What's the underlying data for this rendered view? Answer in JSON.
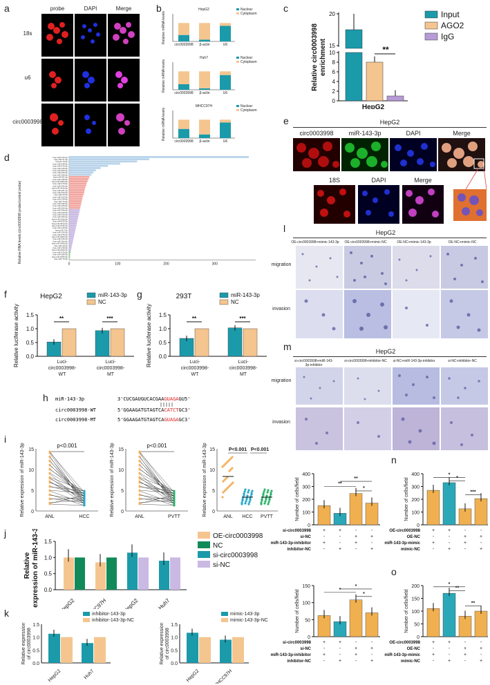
{
  "panels": {
    "a": "a",
    "b": "b",
    "c": "c",
    "d": "d",
    "e": "e",
    "f": "f",
    "g": "g",
    "h": "h",
    "i": "i",
    "j": "j",
    "k": "k",
    "l": "l",
    "m": "m",
    "n": "n",
    "o": "o"
  },
  "colors": {
    "teal": "#1b9aaa",
    "orange": "#f5c58f",
    "purple": "#b79ad8",
    "green": "#118a5a",
    "lightblue": "#b8d3ea",
    "salmon": "#f2a6a0",
    "lavender": "#c9b9e3",
    "pvtt": "#2bb36c",
    "hcc": "#27a8c9",
    "anl": "#f3b15a"
  },
  "a": {
    "cols": [
      "probe",
      "DAPI",
      "Merge"
    ],
    "rows": [
      "18s",
      "u6",
      "circ0003998"
    ]
  },
  "b": {
    "ylabel": "Relative mRNA levels",
    "legend": [
      "Nuclear",
      "Cytoplasm"
    ],
    "charts": [
      {
        "title": "HepG2",
        "categories": [
          "circ0003998",
          "β-actin",
          "U6"
        ]
      },
      {
        "title": "Huh7",
        "categories": [
          "circ0003998",
          "β-actin",
          "U6"
        ]
      },
      {
        "title": "MHCC97H",
        "categories": [
          "circ0003998",
          "β-actin",
          "U6"
        ]
      }
    ]
  },
  "chart_data": [
    {
      "id": "b-HepG2",
      "type": "bar",
      "stacked": true,
      "categories": [
        "circ0003998",
        "β-actin",
        "U6"
      ],
      "series": [
        {
          "name": "Nuclear",
          "values": [
            0.35,
            0.1,
            0.85
          ]
        },
        {
          "name": "Cytoplasm",
          "values": [
            0.65,
            0.9,
            0.15
          ]
        }
      ],
      "ylim": [
        0,
        1.5
      ]
    },
    {
      "id": "b-Huh7",
      "type": "bar",
      "stacked": true,
      "categories": [
        "circ0003998",
        "β-actin",
        "U6"
      ],
      "series": [
        {
          "name": "Nuclear",
          "values": [
            0.3,
            0.08,
            0.8
          ]
        },
        {
          "name": "Cytoplasm",
          "values": [
            0.7,
            0.92,
            0.2
          ]
        }
      ],
      "ylim": [
        0,
        1.5
      ]
    },
    {
      "id": "b-MHCC97H",
      "type": "bar",
      "stacked": true,
      "categories": [
        "circ0003998",
        "β-actin",
        "U6"
      ],
      "series": [
        {
          "name": "Nuclear",
          "values": [
            0.5,
            0.2,
            0.85
          ]
        },
        {
          "name": "Cytoplasm",
          "values": [
            0.5,
            0.8,
            0.15
          ]
        }
      ],
      "ylim": [
        0,
        1.5
      ]
    },
    {
      "id": "c",
      "type": "bar",
      "categories": [
        "HepG2"
      ],
      "series": [
        {
          "name": "Input",
          "values": [
            17.5
          ]
        },
        {
          "name": "AGO2",
          "values": [
            8
          ]
        },
        {
          "name": "IgG",
          "values": [
            1
          ]
        }
      ],
      "ylabel": "Relative circ0003998 enrichment",
      "yticks": [
        "0",
        "2",
        "4",
        "6",
        "8",
        "10",
        "15",
        "20"
      ],
      "sig": "**"
    },
    {
      "id": "f",
      "type": "bar",
      "title": "HepG2",
      "categories": [
        "Luci-circ0003998-WT",
        "Luci-circ0003998-MT"
      ],
      "series": [
        {
          "name": "miR-143-3p",
          "values": [
            0.52,
            0.93
          ]
        },
        {
          "name": "NC",
          "values": [
            1.0,
            1.0
          ]
        }
      ],
      "ylabel": "Relative luciferase activity",
      "yticks": [
        "0.0",
        "0.5",
        "1.0",
        "1.5"
      ],
      "sig": [
        "**",
        "***"
      ]
    },
    {
      "id": "g",
      "type": "bar",
      "title": "293T",
      "categories": [
        "Luci-circ0003998-WT",
        "Luci-circ0003998-MT"
      ],
      "series": [
        {
          "name": "miR-143-3p",
          "values": [
            0.65,
            1.03
          ]
        },
        {
          "name": "NC",
          "values": [
            1.0,
            1.0
          ]
        }
      ],
      "ylabel": "Relative luciferase activity",
      "yticks": [
        "0.0",
        "0.5",
        "1.0",
        "1.5"
      ],
      "sig": [
        "**",
        "***"
      ]
    },
    {
      "id": "j",
      "type": "bar",
      "categories": [
        "HepG2",
        "MHCC97H",
        "HepG2",
        "Huh7"
      ],
      "series": [
        {
          "name": "OE-circ0003998",
          "values": [
            1.0,
            0.85,
            null,
            null
          ]
        },
        {
          "name": "NC",
          "values": [
            1.0,
            1.0,
            null,
            null
          ]
        },
        {
          "name": "si-circ0003998",
          "values": [
            null,
            null,
            1.15,
            0.9
          ]
        },
        {
          "name": "si-NC",
          "values": [
            null,
            null,
            1.0,
            1.0
          ]
        }
      ],
      "ylabel": "Relative expression of miR-143-3p",
      "yticks": [
        "0.0",
        "0.5",
        "1.0",
        "1.5"
      ]
    },
    {
      "id": "k1",
      "type": "bar",
      "categories": [
        "HepG2",
        "Huh7"
      ],
      "series": [
        {
          "name": "inhibitor-143-3p",
          "values": [
            1.13,
            0.77
          ]
        },
        {
          "name": "inhibitor-143-3p-NC",
          "values": [
            1.0,
            1.0
          ]
        }
      ],
      "ylabel": "Relative expression of circ0003998",
      "yticks": [
        "0.0",
        "0.5",
        "1.0",
        "1.5"
      ]
    },
    {
      "id": "k2",
      "type": "bar",
      "categories": [
        "HepG2",
        "MHCC97H"
      ],
      "series": [
        {
          "name": "mimic-143-3p",
          "values": [
            1.17,
            0.9
          ]
        },
        {
          "name": "mimic-143-3p-NC",
          "values": [
            1.0,
            1.0
          ]
        }
      ],
      "ylabel": "Relative expression of circ0003998",
      "yticks": [
        "0.0",
        "0.5",
        "1.0",
        "1.5"
      ]
    },
    {
      "id": "n1",
      "type": "bar",
      "values": [
        150,
        90,
        245,
        170
      ],
      "ylabel": "Number of cells/field",
      "yticks": [
        "0",
        "100",
        "200",
        "300",
        "400"
      ]
    },
    {
      "id": "n2",
      "type": "bar",
      "values": [
        270,
        330,
        125,
        205
      ],
      "ylabel": "Number of cells/field",
      "yticks": [
        "0",
        "100",
        "200",
        "300",
        "400"
      ]
    },
    {
      "id": "o1",
      "type": "bar",
      "values": [
        62,
        44,
        108,
        70
      ],
      "ylabel": "Number of cells/field",
      "yticks": [
        "0",
        "50",
        "100",
        "150"
      ]
    },
    {
      "id": "o2",
      "type": "bar",
      "values": [
        110,
        170,
        80,
        100
      ],
      "ylabel": "Number of cells/field",
      "yticks": [
        "0",
        "50",
        "100",
        "150",
        "200"
      ]
    }
  ],
  "c": {
    "legend": [
      "Input",
      "AGO2",
      "IgG"
    ],
    "ylabel": "Relative circ0003998 enrichment",
    "xlabel": "HepG2",
    "sig": "**"
  },
  "d": {
    "ylabel": "Relative RNA levels (circ0003998 probe/control probe)",
    "xticks": [
      "0",
      "100",
      "200",
      "300"
    ],
    "mirnas": [
      "hsa-miR-143-3p",
      "hsa-miR-21-5p",
      "hsa-let-7a-5p",
      "hsa-miR-148-5p",
      "hsa-miR-27a-3p",
      "hsa-miR-126-5p",
      "hsa-miR-26a-5p",
      "hsa-miR-22b-5p",
      "hsa-miR-106-5p",
      "hsa-miR-411-5p",
      "hsa-miR-199-5p",
      "hsa-miR-200a-5p",
      "hsa-miR-373-5p",
      "hsa-miR-10b-5p",
      "hsa-miR-181a-5p",
      "hsa-miR-221-3p",
      "hsa-miR-23a-5p",
      "hsa-miR-34-5p",
      "hsa-miR-122-5p",
      "hsa-miR-128-5p",
      "hsa-miR-7a-3p",
      "hsa-miR-182-5p",
      "hsa-miR-105-5p",
      "hsa-miR-200-5p",
      "hsa-miR-34a-5p",
      "hsa-miR-203-5p",
      "hsa-miR-216-5p",
      "hsa-miR-150-3p",
      "hsa-miR-219a-5p",
      "hsa-miR-425-5p",
      "hsa-miR-451a-5p",
      "hsa-miR-374b-5p",
      "hsa-miR-149-5p",
      "hsa-miR-7-5p",
      "hsa-miR-155-5p",
      "hsa-miR-376-5p",
      "hsa-miR-200b-5p",
      "hsa-miR-15b-5p",
      "hsa-miR-10a-5p",
      "hsa-miR-146a-5p",
      "hsa-miR-20-5p",
      "hsa-miR-139-5p",
      "hsa-miR-203a-5p",
      "hsa-miR-27b-5p",
      "hsa-miR-186-5p",
      "hsa-miR-150b-5p",
      "hsa-miR-7b-5p"
    ]
  },
  "e": {
    "title": "HepG2",
    "row1": [
      "circ0003998",
      "miR-143-3p",
      "DAPI",
      "Merge"
    ],
    "row2": [
      "18S",
      "DAPI",
      "Merge"
    ]
  },
  "f": {
    "title": "HepG2",
    "legend": [
      "miR-143-3p",
      "NC"
    ],
    "ylabel": "Relative luciferase activity",
    "xcats": [
      "Luci-",
      "circ0003998-",
      "WT",
      "Luci-",
      "circ0003998-",
      "MT"
    ]
  },
  "g": {
    "title": "293T",
    "legend": [
      "miR-143-3p",
      "NC"
    ],
    "ylabel": "Relative luciferase activity"
  },
  "h": {
    "l1_name": "miR-143-3p",
    "l1_a": "3'CUCGAUGUCACGAA",
    "l1_b": "GUAGA",
    "l1_c": "GU5'",
    "l2_name": "circ0003998-WT",
    "l2_a": "5'GGAAGATGTAGTCA",
    "l2_b": "CATCT",
    "l2_c": "GC3'",
    "l3_name": "circ0003998-MT",
    "l3_a": "5'GGAAGATGTAGTCA",
    "l3_b": "GUAGA",
    "l3_c": "GC3'"
  },
  "i": {
    "ylabel": "Relative expression of miR-143-3p",
    "p1": "p<0.001",
    "p2": "p<0.001",
    "p3": "P<0.001",
    "p4": "P<0.001",
    "x1": [
      "ANL",
      "HCC"
    ],
    "x2": [
      "ANL",
      "PVTT"
    ],
    "x3": [
      "ANL",
      "HCC",
      "PVTT"
    ],
    "yt1": [
      "0",
      "5",
      "10",
      "15"
    ]
  },
  "j": {
    "legend": [
      "OE-circ0003998",
      "NC",
      "si-circ0003998",
      "si-NC"
    ],
    "ylabel": "Relative expression of miR-143-3p",
    "xcats": [
      "HepG2",
      "MHCC97H",
      "HepG2",
      "Huh7"
    ]
  },
  "k": {
    "legend1": [
      "inhibitor-143-3p",
      "inhibitor-143-3p-NC"
    ],
    "legend2": [
      "mimic-143-3p",
      "mimic-143-3p-NC"
    ],
    "ylabel": "Relative expression of circ0003998",
    "x1": [
      "HepG2",
      "Huh7"
    ],
    "x2": [
      "HepG2",
      "MHCC97H"
    ]
  },
  "l": {
    "title": "HepG2",
    "cols": [
      "OE-circ0003998+mimic-143-3p",
      "OE-circ0003998+mimic-NC",
      "OE-NC+mimic-143-3p",
      "OE-NC+mimic-NC"
    ],
    "rows": [
      "migration",
      "invasion"
    ]
  },
  "m": {
    "title": "HepG2",
    "cols": [
      "si-circ0003998+miR-143-3p-inhibitor",
      "si-circ0003998+inhibitor-NC",
      "si-NC+miR-143-3p-inhibitor",
      "si-NC+inhibitor-NC"
    ],
    "rows": [
      "migration",
      "invasion"
    ]
  },
  "grid_left": {
    "rows": [
      "si-circ0003998",
      "si-NC",
      "miR-143-3p-inhibitor",
      "inhibitor-NC"
    ],
    "marks": [
      [
        "+",
        "+",
        "-",
        "-"
      ],
      [
        "-",
        "-",
        "+",
        "+"
      ],
      [
        "+",
        "-",
        "+",
        "-"
      ],
      [
        "-",
        "+",
        "-",
        "+"
      ]
    ]
  },
  "grid_right": {
    "rows": [
      "OE-circ0003998",
      "OE-NC",
      "miR-143-3p-mimic",
      "mimic-NC"
    ],
    "marks": [
      [
        "+",
        "+",
        "-",
        "-"
      ],
      [
        "-",
        "-",
        "+",
        "+"
      ],
      [
        "+",
        "-",
        "+",
        "-"
      ],
      [
        "-",
        "+",
        "-",
        "+"
      ]
    ]
  },
  "sig": {
    "s1": "*",
    "s2": "**",
    "s3": "***"
  }
}
